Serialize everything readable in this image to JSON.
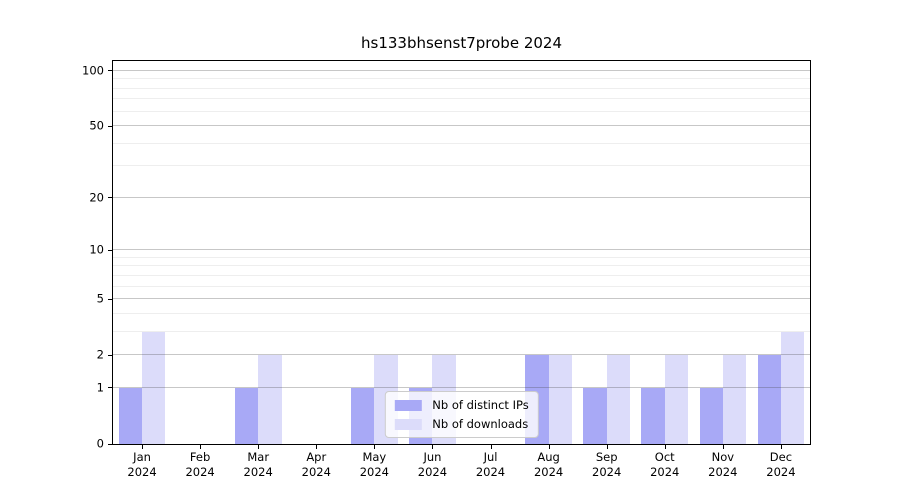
{
  "figure_title": "hs133bhsenst7probe 2024",
  "chart_data": {
    "type": "bar",
    "title": "hs133bhsenst7probe 2024",
    "categories": [
      "Jan",
      "Feb",
      "Mar",
      "Apr",
      "May",
      "Jun",
      "Jul",
      "Aug",
      "Sep",
      "Oct",
      "Nov",
      "Dec"
    ],
    "category_year": "2024",
    "series": [
      {
        "name": "Nb of distinct IPs",
        "color": "#a8a9f6",
        "values": [
          1,
          0,
          1,
          0,
          1,
          1,
          0,
          2,
          1,
          1,
          1,
          2
        ]
      },
      {
        "name": "Nb of downloads",
        "color": "#dcdcfa",
        "values": [
          3,
          0,
          2,
          0,
          2,
          2,
          0,
          2,
          2,
          2,
          2,
          3
        ]
      }
    ],
    "xlabel": "",
    "ylabel": "",
    "yscale": "log1p",
    "ylim": [
      0,
      113
    ],
    "yticks": [
      0,
      1,
      2,
      5,
      10,
      20,
      50,
      100
    ],
    "yticks_minor": [
      3,
      4,
      6,
      7,
      8,
      9,
      30,
      40,
      60,
      70,
      80,
      90
    ],
    "grid": "on",
    "legend_position": "lower center"
  },
  "colors": {
    "bar_dark": "#a8a9f6",
    "bar_light": "#dcdcfa",
    "grid_major": "#c9c9c9",
    "grid_minor": "#ececec",
    "axis": "#000000",
    "background": "#ffffff"
  }
}
